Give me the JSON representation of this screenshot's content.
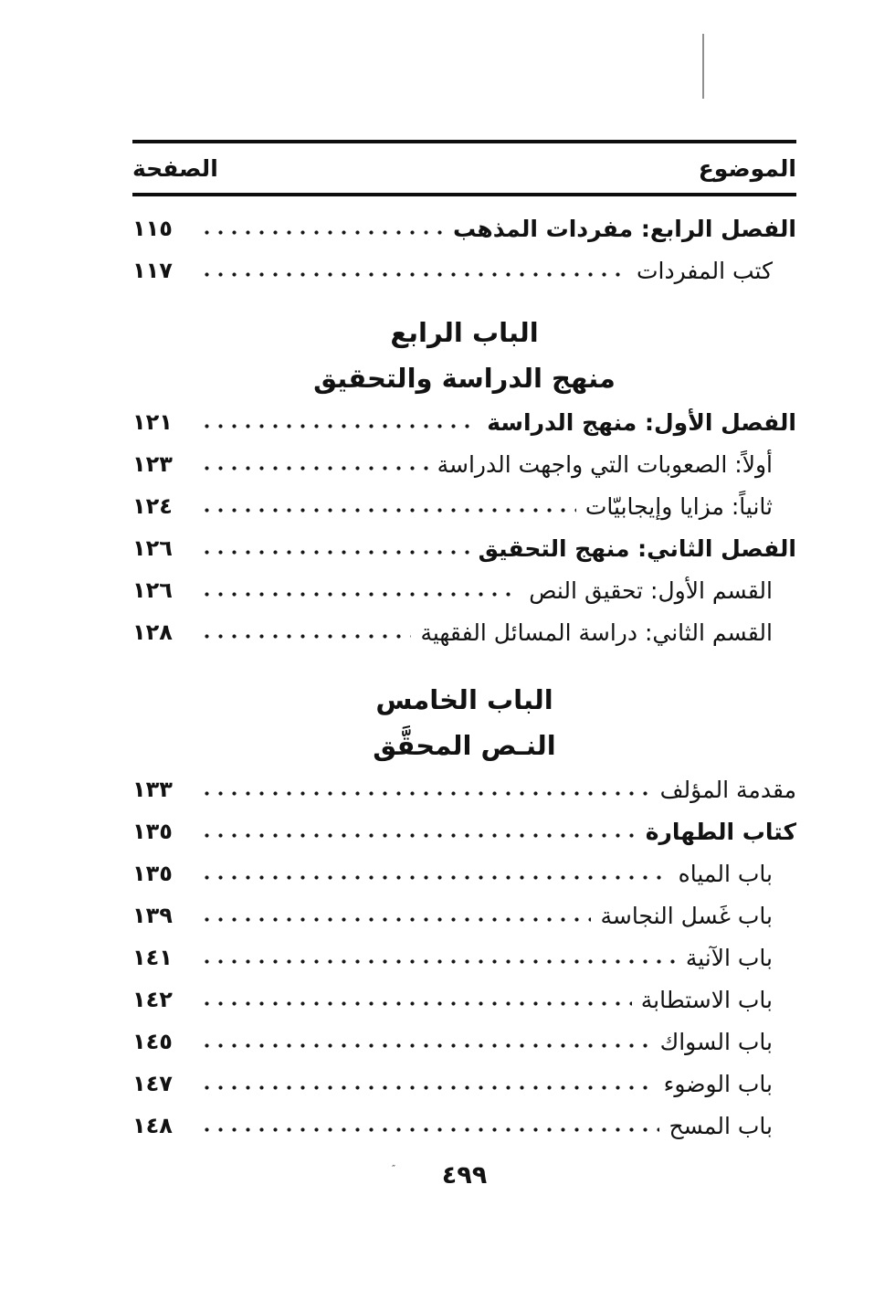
{
  "header": {
    "topic_label": "الموضوع",
    "page_label": "الصفحة"
  },
  "toc": {
    "flow": [
      {
        "kind": "entry",
        "title": "الفصل الرابع: مفردات المذهب",
        "page": "١١٥",
        "indent": 0,
        "bold": true
      },
      {
        "kind": "entry",
        "title": "كتب المفردات",
        "page": "١١٧",
        "indent": 1,
        "bold": false
      },
      {
        "kind": "heading",
        "lines": [
          "الباب الرابع",
          "منهج الدراسة والتحقيق"
        ]
      },
      {
        "kind": "entry",
        "title": "الفصل الأول: منهج الدراسة",
        "page": "١٢١",
        "indent": 0,
        "bold": true
      },
      {
        "kind": "entry",
        "title": "أولاً: الصعوبات التي واجهت الدراسة",
        "page": "١٢٣",
        "indent": 1,
        "bold": false
      },
      {
        "kind": "entry",
        "title": "ثانياً: مزايا وإيجابيّات",
        "page": "١٢٤",
        "indent": 1,
        "bold": false
      },
      {
        "kind": "entry",
        "title": "الفصل الثاني: منهج التحقيق",
        "page": "١٢٦",
        "indent": 0,
        "bold": true
      },
      {
        "kind": "entry",
        "title": "القسم الأول: تحقيق النص",
        "page": "١٢٦",
        "indent": 1,
        "bold": false
      },
      {
        "kind": "entry",
        "title": "القسم الثاني: دراسة المسائل الفقهية",
        "page": "١٢٨",
        "indent": 1,
        "bold": false
      },
      {
        "kind": "heading",
        "lines": [
          "الباب الخامس",
          "النـص المحقَّق"
        ]
      },
      {
        "kind": "entry",
        "title": "مقدمة المؤلف",
        "page": "١٣٣",
        "indent": 0,
        "bold": false
      },
      {
        "kind": "entry",
        "title": "كتاب الطهارة",
        "page": "١٣٥",
        "indent": 0,
        "bold": true
      },
      {
        "kind": "entry",
        "title": "باب المياه",
        "page": "١٣٥",
        "indent": 1,
        "bold": false
      },
      {
        "kind": "entry",
        "title": "باب غَسل النجاسة",
        "page": "١٣٩",
        "indent": 1,
        "bold": false
      },
      {
        "kind": "entry",
        "title": "باب الآنية",
        "page": "١٤١",
        "indent": 1,
        "bold": false
      },
      {
        "kind": "entry",
        "title": "باب الاستطابة",
        "page": "١٤٢",
        "indent": 1,
        "bold": false
      },
      {
        "kind": "entry",
        "title": "باب السواك",
        "page": "١٤٥",
        "indent": 1,
        "bold": false
      },
      {
        "kind": "entry",
        "title": "باب الوضوء",
        "page": "١٤٧",
        "indent": 1,
        "bold": false
      },
      {
        "kind": "entry",
        "title": "باب المسح",
        "page": "١٤٨",
        "indent": 1,
        "bold": false
      }
    ]
  },
  "footer": {
    "page_number": "٤٩٩",
    "artifact_mark": "″"
  }
}
